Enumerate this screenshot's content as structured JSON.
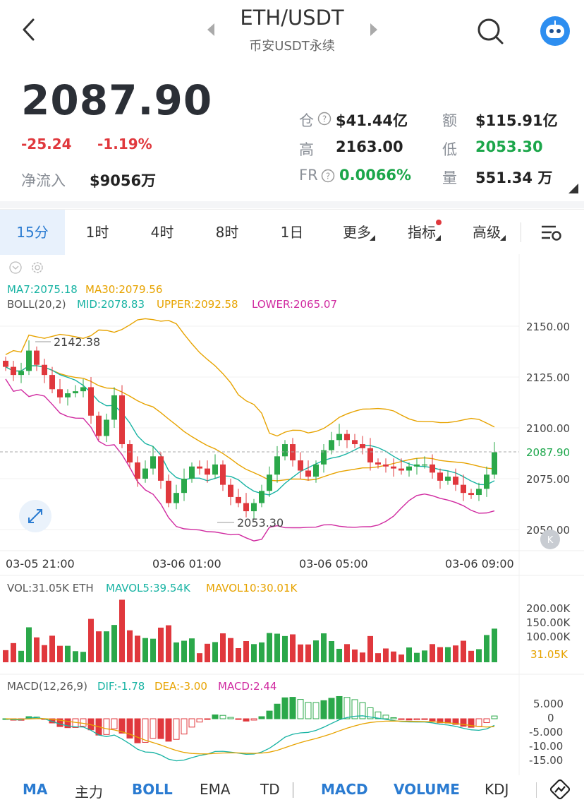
{
  "header": {
    "title": "ETH/USDT",
    "subtitle": "币安USDT永续"
  },
  "ticker": {
    "price": "2087.90",
    "change": "-25.24",
    "change_pct": "-1.19%",
    "netflow_label": "净流入",
    "netflow_value": "$9056万",
    "stats": {
      "oi_label": "仓",
      "oi_value": "$41.44亿",
      "amount_label": "额",
      "amount_value": "$115.91亿",
      "high_label": "高",
      "high_value": "2163.00",
      "low_label": "低",
      "low_value": "2053.30",
      "fr_label": "FR",
      "fr_value": "0.0066%",
      "vol_label": "量",
      "vol_value": "551.34 万"
    }
  },
  "tabs": [
    {
      "label": "15分",
      "active": true
    },
    {
      "label": "1时"
    },
    {
      "label": "4时"
    },
    {
      "label": "8时"
    },
    {
      "label": "1日"
    },
    {
      "label": "更多"
    },
    {
      "label": "指标"
    },
    {
      "label": "高级"
    }
  ],
  "chart_data": [
    {
      "type": "candlestick",
      "indicators": {
        "ma_line": "MA7:2075.18",
        "ma30": "MA30:2079.56",
        "boll_label": "BOLL(20,2)",
        "boll_mid": "MID:2078.83",
        "boll_upper": "UPPER:2092.58",
        "boll_lower": "LOWER:2065.07"
      },
      "y_ticks": [
        "2150.00",
        "2125.00",
        "2100.00",
        "2075.00",
        "2050.00"
      ],
      "ylim": [
        2043,
        2168
      ],
      "x_ticks": [
        "03-05 21:00",
        "03-06 01:00",
        "03-06 05:00",
        "03-06 09:00"
      ],
      "last_price": "2087.90",
      "high_marker": "2142.38",
      "low_marker": "2053.30",
      "closes": [
        2130,
        2126,
        2128,
        2138,
        2131,
        2126,
        2119,
        2115,
        2117,
        2118,
        2120,
        2106,
        2096,
        2104,
        2116,
        2092,
        2083,
        2075,
        2080,
        2086,
        2074,
        2063,
        2068,
        2075,
        2081,
        2080,
        2077,
        2082,
        2072,
        2066,
        2063,
        2059,
        2063,
        2069,
        2077,
        2086,
        2092,
        2084,
        2079,
        2076,
        2082,
        2089,
        2094,
        2097,
        2094,
        2092,
        2090,
        2083,
        2082,
        2081,
        2080,
        2079,
        2081,
        2082,
        2082,
        2078,
        2074,
        2076,
        2072,
        2068,
        2067,
        2070,
        2077,
        2088
      ]
    },
    {
      "type": "bar",
      "label_vol": "VOL:31.05K ETH",
      "label_mavol5": "MAVOL5:39.54K",
      "label_mavol10": "MAVOL10:30.01K",
      "y_ticks": [
        "200.00K",
        "150.00K",
        "100.00K"
      ],
      "current": "31.05K",
      "ylim": [
        0,
        210
      ]
    },
    {
      "type": "bar",
      "label_macd": "MACD(12,26,9)",
      "label_dif": "DIF:-1.78",
      "label_dea": "DEA:-3.00",
      "label_hist": "MACD:2.44",
      "y_ticks": [
        "5.000",
        "0",
        "-5.000",
        "-10.00",
        "-15.00"
      ],
      "ylim": [
        -16,
        7
      ]
    }
  ],
  "bottom_bar": [
    "MA",
    "主力",
    "BOLL",
    "EMA",
    "TD",
    "MACD",
    "VOLUME",
    "KDJ"
  ],
  "colors": {
    "up": "#2ba84a",
    "down": "#e0383d",
    "accent": "#2a7bd1"
  }
}
